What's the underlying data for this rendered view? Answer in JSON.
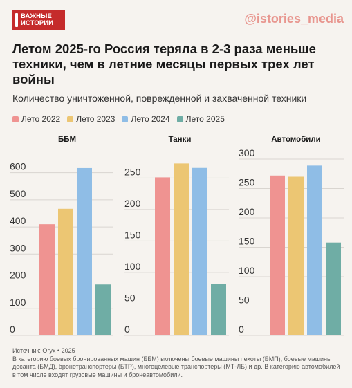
{
  "logo": {
    "line1": "ВАЖНЫЕ",
    "line2": "ИСТОРИИ"
  },
  "handle": "@istories_media",
  "title": "Летом 2025-го Россия теряла в 2-3 раза меньше техники, чем в летние месяцы первых трех лет войны",
  "subtitle": "Количество уничтоженной, поврежденной и захваченной техники",
  "footer": {
    "source": "Источник: Oryx • 2025",
    "note": "В категорию боевых бронированных машин (ББМ) включены боевые машины пехоты (БМП), боевые машины десанта (БМД), бронетранспортеры (БТР), многоцелевые транспортеры (МТ-ЛБ) и др. В категорию автомобилей в том числе входят грузовые машины и бронеавтомобили."
  },
  "chart_data": {
    "type": "bar",
    "series": [
      {
        "name": "Лето 2022",
        "color": "#ef9391"
      },
      {
        "name": "Лето 2023",
        "color": "#ecc673"
      },
      {
        "name": "Лето 2024",
        "color": "#8fbde6"
      },
      {
        "name": "Лето 2025",
        "color": "#6fada5"
      }
    ],
    "panels": [
      {
        "title": "ББМ",
        "ylim": [
          0,
          650
        ],
        "ticks": [
          0,
          100,
          200,
          300,
          400,
          500,
          600
        ],
        "values": [
          410,
          467,
          617,
          188
        ]
      },
      {
        "title": "Танки",
        "ylim": [
          0,
          280
        ],
        "ticks": [
          0,
          50,
          100,
          150,
          200,
          250
        ],
        "values": [
          251,
          273,
          266,
          82
        ]
      },
      {
        "title": "Автомобили",
        "ylim": [
          0,
          300
        ],
        "ticks": [
          0,
          50,
          100,
          150,
          200,
          250,
          300
        ],
        "values": [
          272,
          270,
          289,
          158
        ]
      }
    ]
  }
}
